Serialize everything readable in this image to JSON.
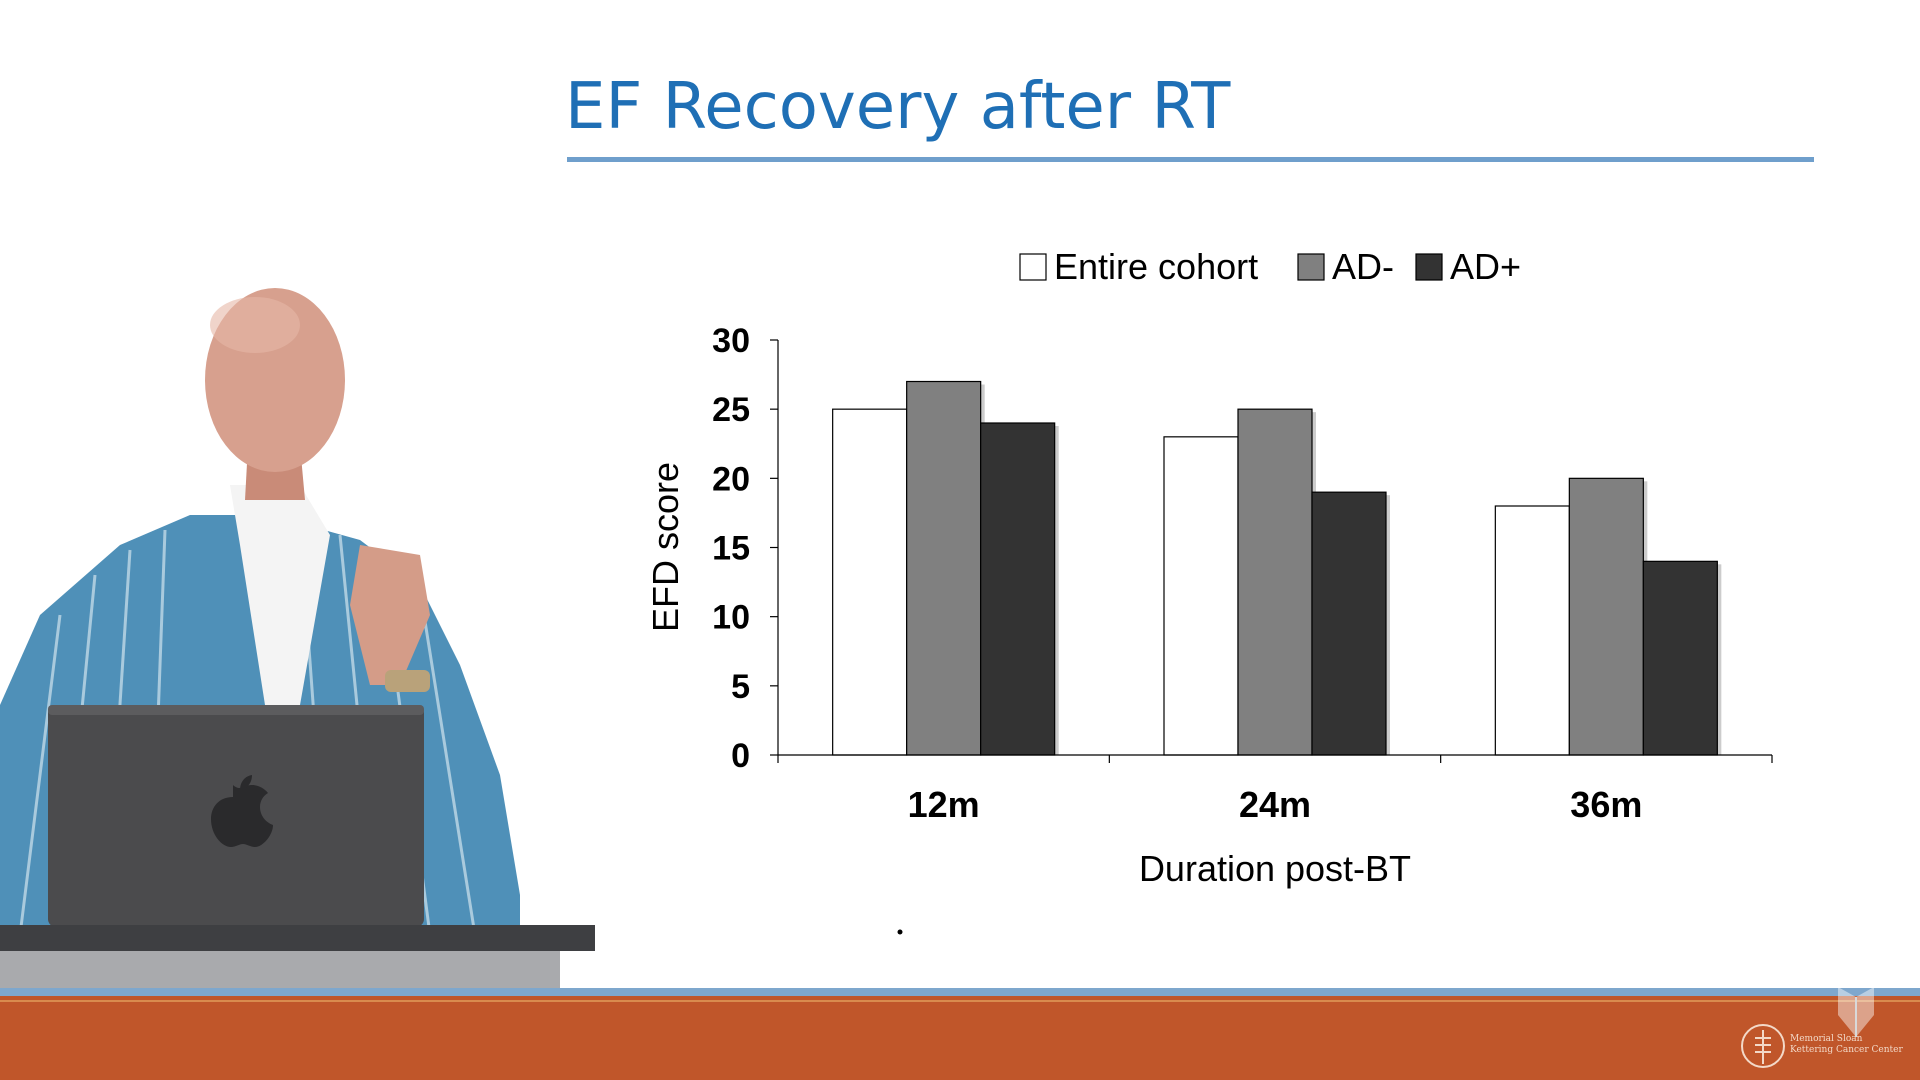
{
  "slide": {
    "title": "EF Recovery after RT"
  },
  "chart_data": {
    "type": "bar",
    "categories": [
      "12m",
      "24m",
      "36m"
    ],
    "series": [
      {
        "name": "Entire cohort",
        "values": [
          25,
          23,
          18
        ],
        "color": "#ffffff"
      },
      {
        "name": "AD-",
        "values": [
          27,
          25,
          20
        ],
        "color": "#808080"
      },
      {
        "name": "AD+",
        "values": [
          24,
          19,
          14
        ],
        "color": "#333333"
      }
    ],
    "yticks": [
      0,
      5,
      10,
      15,
      20,
      25,
      30
    ],
    "ylim": [
      0,
      30
    ],
    "xlabel": "Duration post-BT",
    "ylabel": "EFD score",
    "legend": "top",
    "grid": false
  },
  "logo": {
    "text": "Memorial Sloan Kettering Cancer Center"
  },
  "icons": {
    "presenter": "presenter-video-icon",
    "logo": "msk-logo-icon",
    "watermark": "watermark-icon"
  }
}
